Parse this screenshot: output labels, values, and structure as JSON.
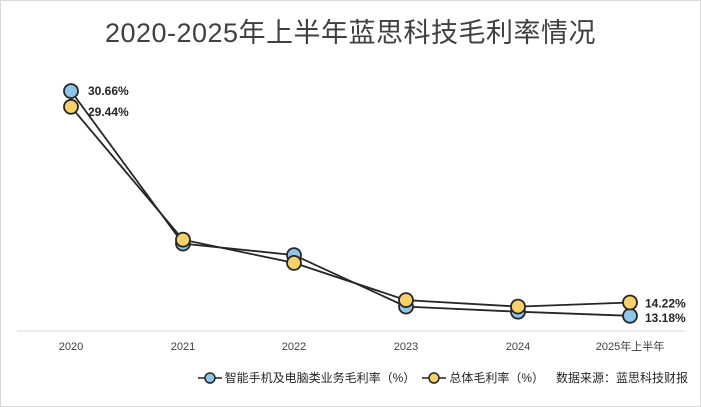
{
  "chart_data": {
    "type": "line",
    "title": "2020-2025年上半年蓝思科技毛利率情况",
    "categories": [
      "2020",
      "2021",
      "2022",
      "2023",
      "2024",
      "2025年上半年"
    ],
    "series": [
      {
        "name": "智能手机及电脑类业务毛利率（%）",
        "color": "#8ec6ea",
        "values": [
          30.66,
          18.8,
          17.9,
          13.9,
          13.5,
          13.18
        ]
      },
      {
        "name": "总体毛利率（%）",
        "color": "#f7d26b",
        "values": [
          29.44,
          19.1,
          17.3,
          14.4,
          13.9,
          14.22
        ]
      }
    ],
    "data_labels": {
      "first": [
        "30.66%",
        "29.44%"
      ],
      "last": [
        "13.18%",
        "14.22%"
      ]
    },
    "ylim": [
      12,
      33
    ],
    "grid": false,
    "legend_position": "bottom-right"
  },
  "source": "数据来源：蓝思科技财报"
}
